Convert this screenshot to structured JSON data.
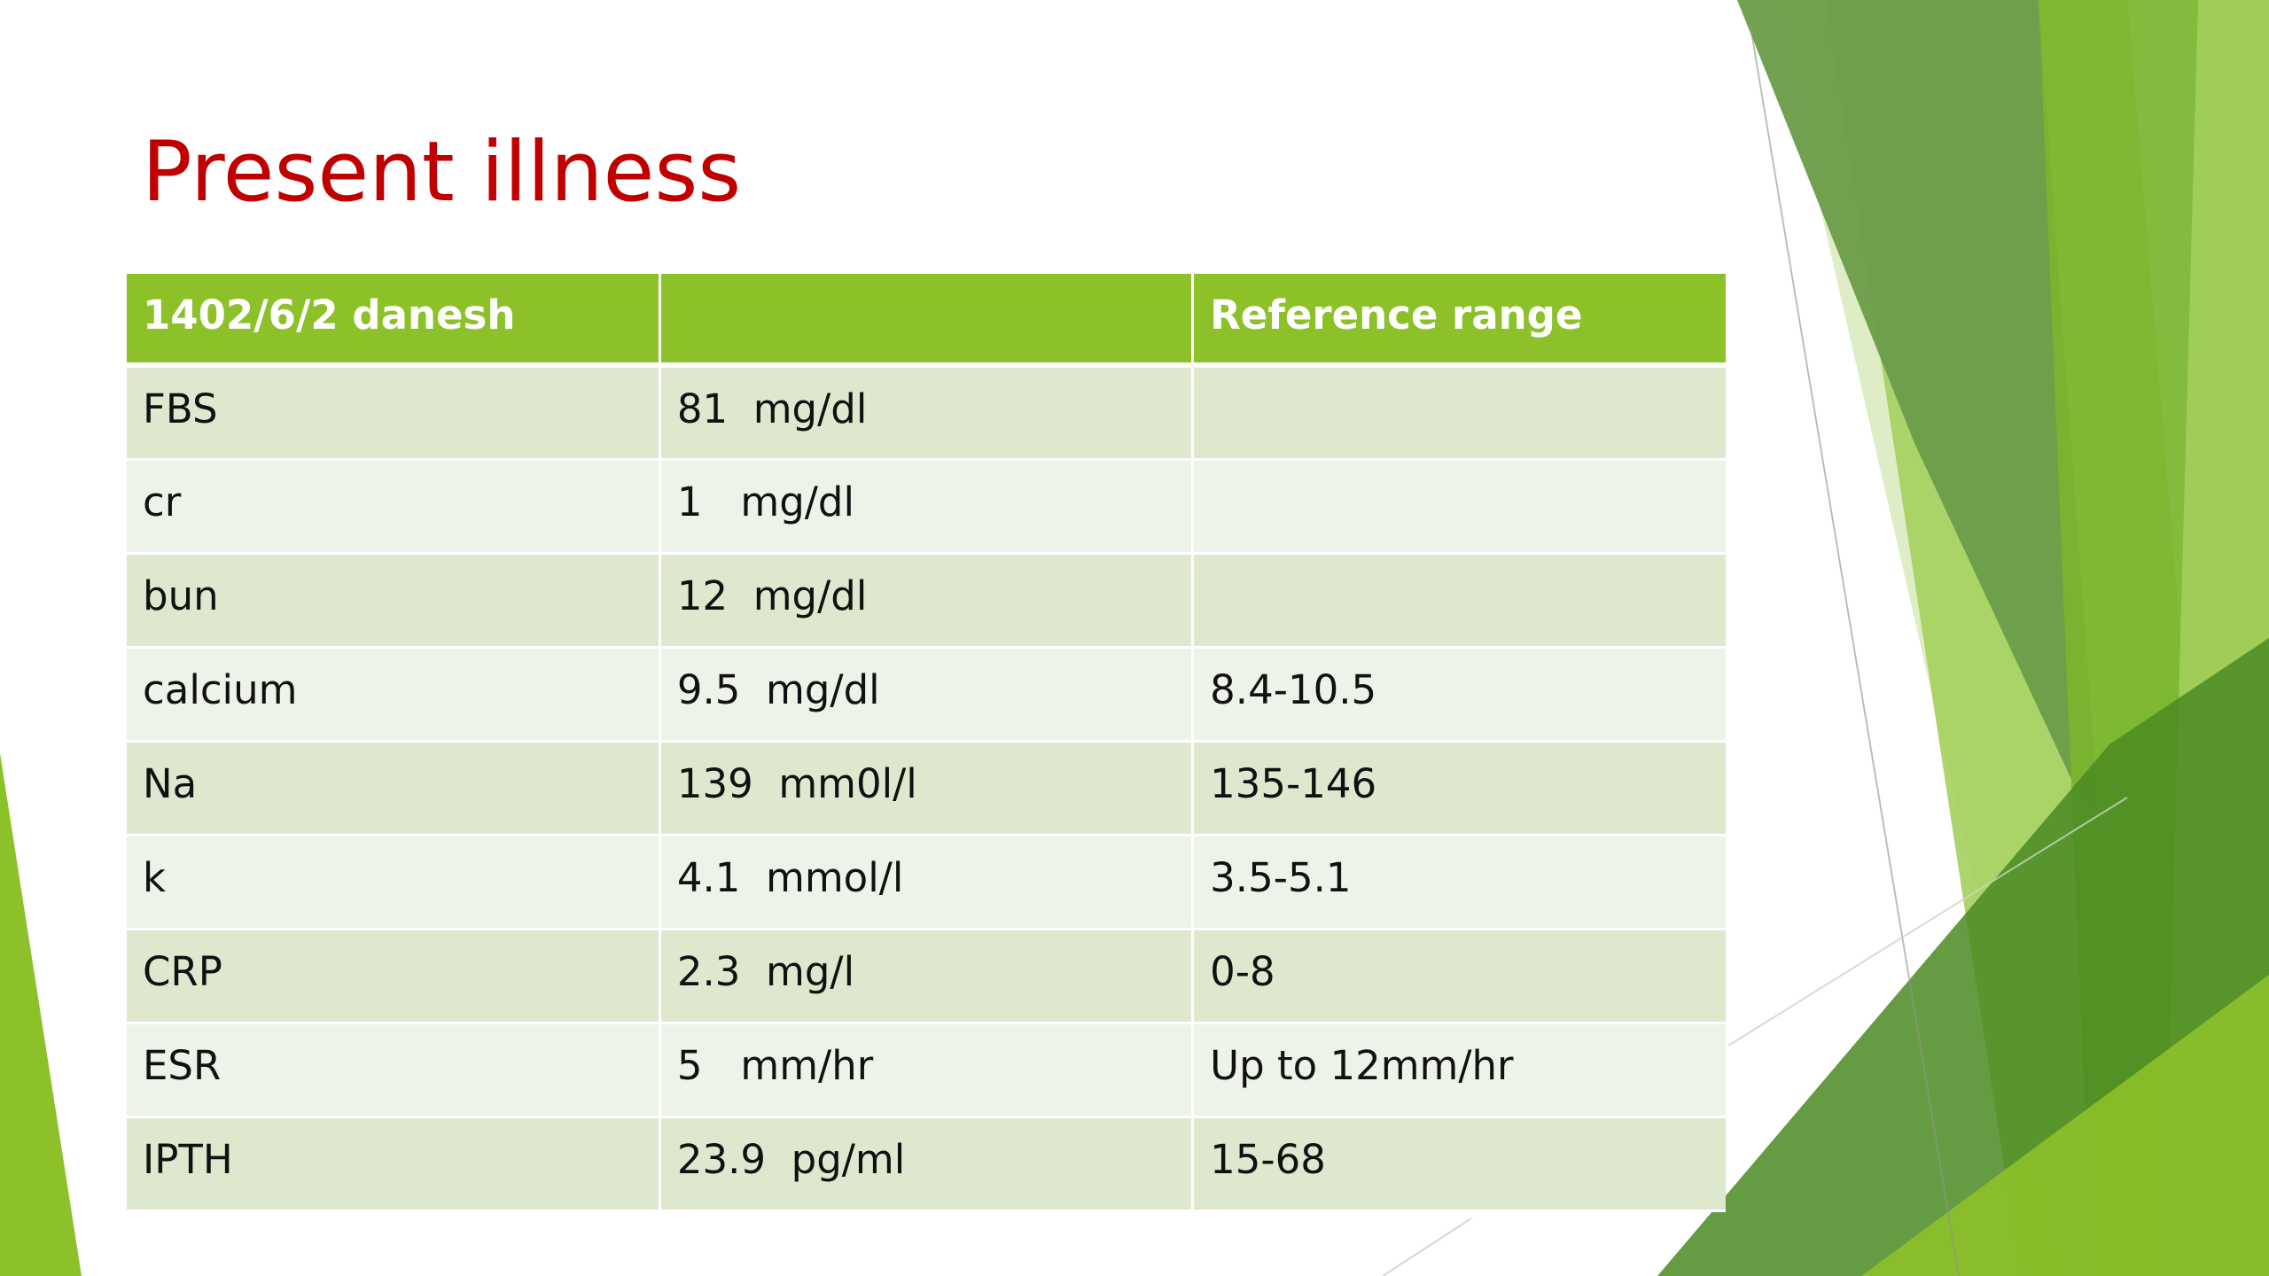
{
  "slide": {
    "title": "Present illness",
    "table": {
      "headers": [
        "1402/6/2 danesh",
        "",
        "Reference range"
      ],
      "rows": [
        {
          "test": "FBS",
          "value": "81  mg/dl",
          "reference": ""
        },
        {
          "test": "cr",
          "value": "1   mg/dl",
          "reference": ""
        },
        {
          "test": "bun",
          "value": "12  mg/dl",
          "reference": ""
        },
        {
          "test": "calcium",
          "value": "9.5  mg/dl",
          "reference": "8.4-10.5"
        },
        {
          "test": "Na",
          "value": "139  mm0l/l",
          "reference": "135-146"
        },
        {
          "test": "k",
          "value": "4.1  mmol/l",
          "reference": "3.5-5.1"
        },
        {
          "test": "CRP",
          "value": "2.3  mg/l",
          "reference": "0-8"
        },
        {
          "test": "ESR",
          "value": "5   mm/hr",
          "reference": "Up to 12mm/hr"
        },
        {
          "test": "IPTH",
          "value": "23.9  pg/ml",
          "reference": "15-68"
        }
      ]
    }
  },
  "colors": {
    "title": "#c00000",
    "header_bg": "#8dc12a",
    "row_band_dark": "#dde8cf",
    "row_band_light": "#eef3e9",
    "theme_greens": [
      "#4a8a22",
      "#6a9c49",
      "#7ab52e",
      "#8dc12a",
      "#a4cf5d",
      "#d6e8b8"
    ]
  }
}
